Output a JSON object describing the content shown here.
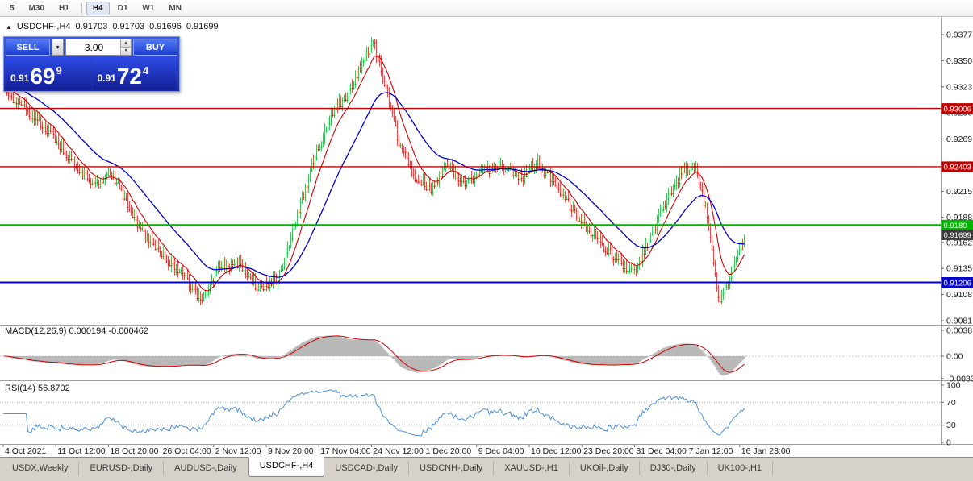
{
  "toolbar": {
    "timeframes": [
      "5",
      "M30",
      "H1",
      "H4",
      "D1",
      "W1",
      "MN"
    ],
    "active": "H4"
  },
  "chart": {
    "header": {
      "tick_icon": "▲",
      "symbol": "USDCHF-,H4",
      "open": "0.91703",
      "high": "0.91703",
      "low": "0.91696",
      "close": "0.91699"
    },
    "trade_panel": {
      "sell_label": "SELL",
      "buy_label": "BUY",
      "volume": "3.00",
      "sell_price": {
        "prefix": "0.91",
        "big": "69",
        "sup": "9"
      },
      "buy_price": {
        "prefix": "0.91",
        "big": "72",
        "sup": "4"
      }
    },
    "price_axis_labels": [
      "0.9377",
      "0.9350",
      "0.9323",
      "0.9296",
      "0.9269",
      "0.9242",
      "0.9215",
      "0.9188",
      "0.9162",
      "0.9135",
      "0.9108",
      "0.9081"
    ],
    "levels": [
      {
        "price": 0.93006,
        "label": "0.93006",
        "color": "#c00000",
        "width": 1.4
      },
      {
        "price": 0.92403,
        "label": "0.92403",
        "color": "#c00000",
        "width": 1.4
      },
      {
        "price": 0.918,
        "label": "0.9180",
        "color": "#00b400",
        "width": 2
      },
      {
        "price": 0.91206,
        "label": "0.91206",
        "color": "#0000c8",
        "width": 2
      }
    ],
    "current_price": {
      "price": 0.91699,
      "label": "0.91699",
      "bg": "#3c3c3c"
    },
    "time_axis_labels": [
      "4 Oct 2021",
      "11 Oct 12:00",
      "18 Oct 20:00",
      "26 Oct 04:00",
      "2 Nov 12:00",
      "9 Nov 20:00",
      "17 Nov 04:00",
      "24 Nov 12:00",
      "1 Dec 20:00",
      "9 Dec 04:00",
      "16 Dec 12:00",
      "23 Dec 20:00",
      "31 Dec 04:00",
      "7 Jan 12:00",
      "16 Jan 23:00"
    ],
    "macd_panel": {
      "label": "MACD(12,26,9) 0.000194 -0.000462",
      "axis_labels": [
        {
          "text": "0.0038",
          "value": 0.0038
        },
        {
          "text": "0.00",
          "value": 0
        },
        {
          "text": "-0.0033",
          "value": -0.0033
        }
      ]
    },
    "rsi_panel": {
      "label": "RSI(14) 56.8702",
      "axis_labels": [
        {
          "text": "100",
          "value": 100
        },
        {
          "text": "70",
          "value": 70
        },
        {
          "text": "30",
          "value": 30
        },
        {
          "text": "0",
          "value": 0
        }
      ],
      "level_lines": [
        70,
        30
      ]
    }
  },
  "chart_data": {
    "type": "candlestick",
    "symbol": "USDCHF-",
    "timeframe": "H4",
    "bars": 460,
    "price_range": {
      "top": 0.9377,
      "bottom": 0.9081
    },
    "price_waypoints": [
      [
        0.0,
        0.9322
      ],
      [
        0.028,
        0.93
      ],
      [
        0.056,
        0.9282
      ],
      [
        0.094,
        0.9245
      ],
      [
        0.121,
        0.9222
      ],
      [
        0.148,
        0.923
      ],
      [
        0.181,
        0.918
      ],
      [
        0.214,
        0.915
      ],
      [
        0.241,
        0.913
      ],
      [
        0.268,
        0.91
      ],
      [
        0.29,
        0.9135
      ],
      [
        0.317,
        0.9142
      ],
      [
        0.344,
        0.9115
      ],
      [
        0.371,
        0.9125
      ],
      [
        0.393,
        0.918
      ],
      [
        0.42,
        0.9252
      ],
      [
        0.442,
        0.9295
      ],
      [
        0.464,
        0.9315
      ],
      [
        0.486,
        0.9352
      ],
      [
        0.499,
        0.9372
      ],
      [
        0.513,
        0.933
      ],
      [
        0.535,
        0.9262
      ],
      [
        0.557,
        0.9228
      ],
      [
        0.578,
        0.9218
      ],
      [
        0.6,
        0.9242
      ],
      [
        0.622,
        0.9222
      ],
      [
        0.649,
        0.9238
      ],
      [
        0.677,
        0.924
      ],
      [
        0.698,
        0.9228
      ],
      [
        0.72,
        0.9244
      ],
      [
        0.747,
        0.922
      ],
      [
        0.774,
        0.919
      ],
      [
        0.802,
        0.9165
      ],
      [
        0.829,
        0.9145
      ],
      [
        0.851,
        0.913
      ],
      [
        0.873,
        0.9165
      ],
      [
        0.894,
        0.9205
      ],
      [
        0.916,
        0.9235
      ],
      [
        0.935,
        0.9242
      ],
      [
        0.952,
        0.918
      ],
      [
        0.967,
        0.9098
      ],
      [
        0.981,
        0.9125
      ],
      [
        0.992,
        0.915
      ],
      [
        1.0,
        0.9168
      ]
    ],
    "indicators": {
      "ma_fast_period": 12,
      "ma_slow_period": 40,
      "macd": [
        12,
        26,
        9
      ],
      "rsi_period": 14
    },
    "colors": {
      "up": "#00a22a",
      "down": "#e00000",
      "ma_fast": "#cc0000",
      "ma_slow": "#0000cc",
      "macd_hist": "#b8b8b8",
      "macd_signal": "#d00000",
      "rsi_line": "#4a90d9"
    }
  },
  "tabs": {
    "items": [
      "USDX,Weekly",
      "EURUSD-,Daily",
      "AUDUSD-,Daily",
      "USDCHF-,H4",
      "USDCAD-,Daily",
      "USDCNH-,Daily",
      "XAUUSD-,H1",
      "UKOil-,Daily",
      "DJ30-,Daily",
      "UK100-,H1"
    ],
    "active": "USDCHF-,H4"
  }
}
